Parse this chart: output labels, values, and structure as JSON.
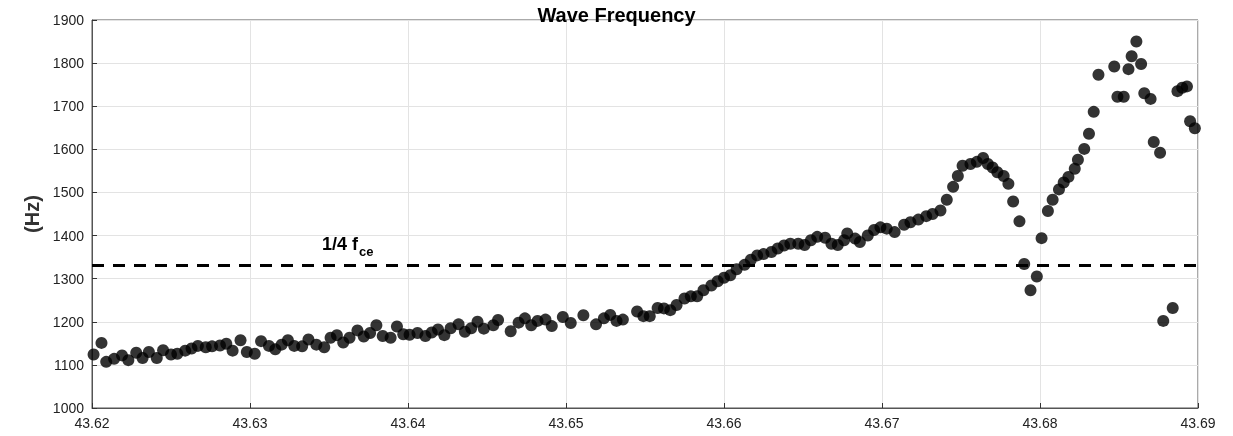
{
  "chart_data": {
    "type": "scatter",
    "title": "Wave Frequency",
    "ylabel": "(Hz)",
    "marker": "circle",
    "grid": true,
    "xlim": [
      43.62,
      43.69
    ],
    "xticks": [
      43.62,
      43.63,
      43.64,
      43.65,
      43.66,
      43.67,
      43.68,
      43.69
    ],
    "ylim": [
      1000,
      1900
    ],
    "yticks": [
      1000,
      1100,
      1200,
      1300,
      1400,
      1500,
      1600,
      1700,
      1800,
      1900
    ],
    "ref_lines": [
      {
        "axis": "y",
        "value": 1330,
        "label": "1/4 f$_{ce}$",
        "color": "#000000",
        "line_style": "dashed"
      }
    ],
    "series": [
      {
        "color": "#000000",
        "x": [
          43.6201,
          43.6206,
          43.6209,
          43.6214,
          43.6219,
          43.6223,
          43.6228,
          43.6232,
          43.6236,
          43.6241,
          43.6245,
          43.625,
          43.6254,
          43.6259,
          43.6263,
          43.6267,
          43.6272,
          43.6276,
          43.6281,
          43.6285,
          43.6289,
          43.6294,
          43.6298,
          43.6303,
          43.6307,
          43.6312,
          43.6316,
          43.632,
          43.6324,
          43.6328,
          43.6333,
          43.6337,
          43.6342,
          43.6347,
          43.6351,
          43.6355,
          43.6359,
          43.6363,
          43.6368,
          43.6372,
          43.6376,
          43.638,
          43.6384,
          43.6389,
          43.6393,
          43.6397,
          43.6401,
          43.6406,
          43.6411,
          43.6415,
          43.6419,
          43.6423,
          43.6427,
          43.6432,
          43.6436,
          43.644,
          43.6444,
          43.6448,
          43.6454,
          43.6457,
          43.6465,
          43.647,
          43.6474,
          43.6478,
          43.6482,
          43.6487,
          43.6491,
          43.6498,
          43.6503,
          43.6511,
          43.6519,
          43.6524,
          43.6528,
          43.6532,
          43.6536,
          43.6545,
          43.6549,
          43.6553,
          43.6558,
          43.6562,
          43.6566,
          43.657,
          43.6575,
          43.6579,
          43.6583,
          43.6587,
          43.6592,
          43.6596,
          43.66,
          43.6604,
          43.6608,
          43.6613,
          43.6617,
          43.6621,
          43.6625,
          43.663,
          43.6634,
          43.6638,
          43.6642,
          43.6647,
          43.6651,
          43.6655,
          43.6659,
          43.6664,
          43.6668,
          43.6672,
          43.6676,
          43.6678,
          43.6683,
          43.6686,
          43.6691,
          43.6695,
          43.6699,
          43.6703,
          43.6708,
          43.6714,
          43.6718,
          43.6723,
          43.6728,
          43.6732,
          43.6737,
          43.6741,
          43.6745,
          43.6748,
          43.6751,
          43.6756,
          43.676,
          43.6764,
          43.6767,
          43.677,
          43.6773,
          43.6777,
          43.678,
          43.6783,
          43.6787,
          43.679,
          43.6794,
          43.6798,
          43.6801,
          43.6805,
          43.6808,
          43.6812,
          43.6815,
          43.6818,
          43.6822,
          43.6824,
          43.6828,
          43.6831,
          43.6834,
          43.6837,
          43.6847,
          43.6849,
          43.6853,
          43.6856,
          43.6858,
          43.6861,
          43.6864,
          43.6866,
          43.687,
          43.6872,
          43.6876,
          43.6878,
          43.6884,
          43.6887,
          43.689,
          43.6893,
          43.6895,
          43.6898
        ],
        "values": [
          1124,
          1151,
          1107,
          1114,
          1122,
          1111,
          1128,
          1116,
          1130,
          1116,
          1134,
          1124,
          1126,
          1133,
          1138,
          1144,
          1141,
          1143,
          1145,
          1149,
          1133,
          1157,
          1130,
          1126,
          1155,
          1144,
          1136,
          1147,
          1157,
          1144,
          1143,
          1159,
          1147,
          1141,
          1163,
          1169,
          1152,
          1163,
          1180,
          1166,
          1174,
          1192,
          1167,
          1163,
          1189,
          1171,
          1170,
          1174,
          1167,
          1175,
          1182,
          1169,
          1185,
          1194,
          1177,
          1185,
          1200,
          1184,
          1192,
          1204,
          1178,
          1198,
          1208,
          1192,
          1202,
          1205,
          1190,
          1211,
          1197,
          1215,
          1194,
          1208,
          1216,
          1202,
          1205,
          1224,
          1213,
          1213,
          1232,
          1231,
          1227,
          1239,
          1254,
          1259,
          1259,
          1273,
          1284,
          1294,
          1302,
          1308,
          1322,
          1332,
          1344,
          1354,
          1357,
          1362,
          1370,
          1377,
          1381,
          1381,
          1378,
          1389,
          1397,
          1395,
          1381,
          1378,
          1389,
          1405,
          1393,
          1385,
          1400,
          1413,
          1419,
          1416,
          1408,
          1425,
          1431,
          1437,
          1445,
          1450,
          1458,
          1483,
          1513,
          1538,
          1562,
          1566,
          1571,
          1580,
          1566,
          1558,
          1547,
          1538,
          1520,
          1479,
          1433,
          1334,
          1273,
          1305,
          1394,
          1457,
          1483,
          1507,
          1523,
          1536,
          1555,
          1576,
          1601,
          1636,
          1687,
          1773,
          1792,
          1722,
          1722,
          1786,
          1816,
          1850,
          1798,
          1730,
          1717,
          1617,
          1592,
          1202,
          1232,
          1735,
          1743,
          1746,
          1665,
          1649
        ]
      }
    ]
  }
}
